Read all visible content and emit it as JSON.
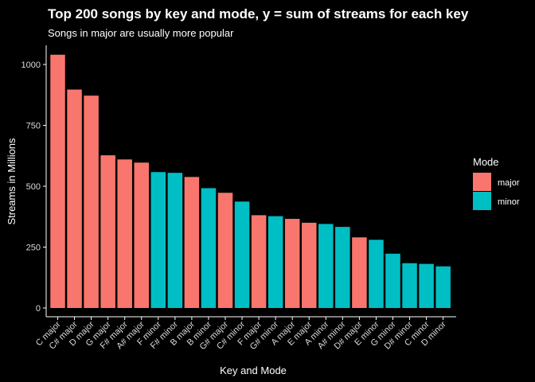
{
  "chart_data": {
    "type": "bar",
    "title": "Top 200 songs by key and mode, y = sum of streams for each key",
    "subtitle": "Songs in major are usually more popular",
    "xlabel": "Key and Mode",
    "ylabel": "Streams in Millions",
    "ylim": [
      0,
      1080
    ],
    "yticks": [
      0,
      250,
      500,
      750,
      1000
    ],
    "grid": false,
    "legend": {
      "title": "Mode",
      "position": "right"
    },
    "series": [
      {
        "name": "major",
        "color": "#F8766D"
      },
      {
        "name": "minor",
        "color": "#00BFC4"
      }
    ],
    "categories": [
      "C major",
      "C# major",
      "D major",
      "G major",
      "F# major",
      "A# major",
      "F minor",
      "F# minor",
      "B major",
      "B minor",
      "G# major",
      "C# minor",
      "F major",
      "G# minor",
      "A major",
      "E major",
      "A minor",
      "A# minor",
      "D# major",
      "E minor",
      "G minor",
      "D# minor",
      "C minor",
      "D minor"
    ],
    "values": [
      1040,
      897,
      872,
      627,
      610,
      597,
      558,
      555,
      538,
      492,
      473,
      437,
      381,
      377,
      366,
      350,
      345,
      333,
      290,
      280,
      223,
      184,
      181,
      171
    ],
    "modes": [
      "major",
      "major",
      "major",
      "major",
      "major",
      "major",
      "minor",
      "minor",
      "major",
      "minor",
      "major",
      "minor",
      "major",
      "minor",
      "major",
      "major",
      "minor",
      "minor",
      "major",
      "minor",
      "minor",
      "minor",
      "minor",
      "minor"
    ]
  }
}
